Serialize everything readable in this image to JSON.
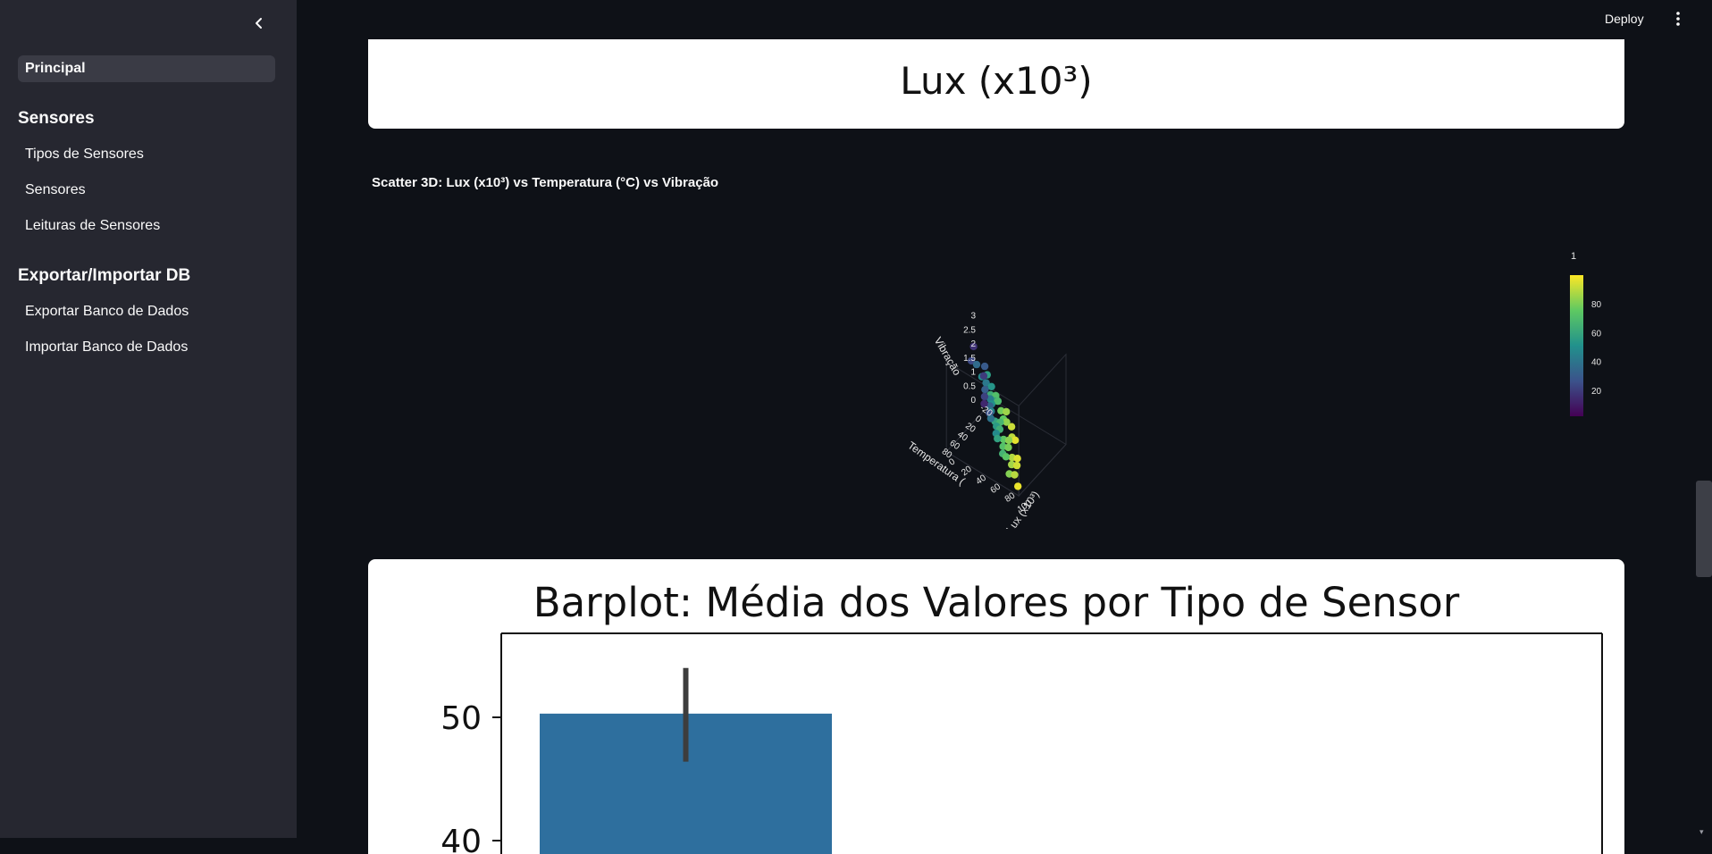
{
  "sidebar": {
    "active_item": "Principal",
    "sections": [
      {
        "heading": "Sensores",
        "items": [
          "Tipos de Sensores",
          "Sensores",
          "Leituras de Sensores"
        ]
      },
      {
        "heading": "Exportar/Importar DB",
        "items": [
          "Exportar Banco de Dados",
          "Importar Banco de Dados"
        ]
      }
    ]
  },
  "header": {
    "deploy_label": "Deploy"
  },
  "top_chart": {
    "xlabel": "Lux (x10³)"
  },
  "scatter": {
    "title": "Scatter 3D: Lux (x10³) vs Temperatura (°C) vs Vibração",
    "colorbar_title": "1",
    "colorbar_ticks": [
      "80",
      "60",
      "40",
      "20"
    ]
  },
  "chart_data": [
    {
      "type": "scatter",
      "title": "Scatter 3D: Lux (x10³) vs Temperatura (°C) vs Vibração",
      "xlabel": "Lux (x10³)",
      "ylabel": "Temperatura (",
      "zlabel": "Vibração",
      "x_ticks": [
        "0",
        "20",
        "40",
        "60",
        "80",
        "100"
      ],
      "y_ticks": [
        "-20",
        "0",
        "20",
        "40",
        "60",
        "80"
      ],
      "z_ticks": [
        "0",
        "0.5",
        "1",
        "1.5",
        "2",
        "2.5",
        "3"
      ],
      "colorbar": {
        "title": "1",
        "ticks": [
          20,
          40,
          60,
          80
        ],
        "colorscale": "viridis"
      },
      "points": [
        {
          "x": 5,
          "y": 40,
          "z": 2.9,
          "c": 15
        },
        {
          "x": 10,
          "y": 55,
          "z": 2.7,
          "c": 22
        },
        {
          "x": 20,
          "y": 60,
          "z": 2.8,
          "c": 35
        },
        {
          "x": 30,
          "y": 65,
          "z": 2.6,
          "c": 48
        },
        {
          "x": 40,
          "y": 70,
          "z": 2.9,
          "c": 55
        },
        {
          "x": 50,
          "y": 80,
          "z": 2.5,
          "c": 62
        },
        {
          "x": 60,
          "y": 85,
          "z": 2.7,
          "c": 70
        },
        {
          "x": 70,
          "y": 90,
          "z": 2.4,
          "c": 78
        },
        {
          "x": 80,
          "y": 95,
          "z": 2.6,
          "c": 85
        },
        {
          "x": 90,
          "y": 100,
          "z": 2.3,
          "c": 92
        },
        {
          "x": 15,
          "y": 30,
          "z": 2.2,
          "c": 28
        },
        {
          "x": 25,
          "y": 45,
          "z": 2.0,
          "c": 40
        },
        {
          "x": 35,
          "y": 50,
          "z": 2.1,
          "c": 52
        },
        {
          "x": 45,
          "y": 60,
          "z": 1.9,
          "c": 60
        },
        {
          "x": 55,
          "y": 70,
          "z": 2.2,
          "c": 68
        },
        {
          "x": 65,
          "y": 75,
          "z": 1.8,
          "c": 75
        },
        {
          "x": 75,
          "y": 85,
          "z": 2.0,
          "c": 83
        },
        {
          "x": 85,
          "y": 90,
          "z": 1.7,
          "c": 90
        },
        {
          "x": 95,
          "y": 100,
          "z": 1.9,
          "c": 96
        },
        {
          "x": 8,
          "y": 20,
          "z": 1.6,
          "c": 18
        },
        {
          "x": 18,
          "y": 35,
          "z": 1.5,
          "c": 30
        },
        {
          "x": 28,
          "y": 40,
          "z": 1.4,
          "c": 42
        },
        {
          "x": 38,
          "y": 55,
          "z": 1.6,
          "c": 50
        },
        {
          "x": 48,
          "y": 65,
          "z": 1.3,
          "c": 58
        },
        {
          "x": 58,
          "y": 70,
          "z": 1.5,
          "c": 66
        },
        {
          "x": 68,
          "y": 80,
          "z": 1.2,
          "c": 74
        },
        {
          "x": 78,
          "y": 85,
          "z": 1.4,
          "c": 82
        },
        {
          "x": 88,
          "y": 95,
          "z": 1.1,
          "c": 88
        },
        {
          "x": 98,
          "y": 100,
          "z": 1.3,
          "c": 95
        },
        {
          "x": 12,
          "y": 25,
          "z": 1.0,
          "c": 20
        },
        {
          "x": 22,
          "y": 30,
          "z": 0.9,
          "c": 33
        },
        {
          "x": 32,
          "y": 45,
          "z": 1.1,
          "c": 45
        },
        {
          "x": 42,
          "y": 50,
          "z": 0.8,
          "c": 54
        },
        {
          "x": 52,
          "y": 60,
          "z": 1.0,
          "c": 63
        },
        {
          "x": 62,
          "y": 70,
          "z": 0.7,
          "c": 71
        },
        {
          "x": 72,
          "y": 75,
          "z": 0.9,
          "c": 79
        },
        {
          "x": 82,
          "y": 85,
          "z": 0.6,
          "c": 86
        },
        {
          "x": 92,
          "y": 90,
          "z": 0.8,
          "c": 93
        },
        {
          "x": 6,
          "y": 15,
          "z": 0.5,
          "c": 12
        },
        {
          "x": 16,
          "y": 20,
          "z": 0.4,
          "c": 25
        },
        {
          "x": 26,
          "y": 35,
          "z": 0.6,
          "c": 38
        },
        {
          "x": 36,
          "y": 40,
          "z": 0.3,
          "c": 47
        },
        {
          "x": 46,
          "y": 55,
          "z": 0.5,
          "c": 57
        },
        {
          "x": 56,
          "y": 60,
          "z": 0.2,
          "c": 65
        },
        {
          "x": 66,
          "y": 70,
          "z": 0.4,
          "c": 73
        },
        {
          "x": 76,
          "y": 80,
          "z": 0.1,
          "c": 81
        },
        {
          "x": 86,
          "y": 85,
          "z": 0.3,
          "c": 89
        },
        {
          "x": 96,
          "y": 95,
          "z": 0.2,
          "c": 97
        }
      ]
    },
    {
      "type": "bar",
      "title": "Barplot: Média dos Valores por Tipo de Sensor",
      "y_ticks": [
        40,
        50
      ],
      "ylim": [
        38,
        56
      ],
      "bars": [
        {
          "value": 50.3,
          "error_low": 46.4,
          "error_high": 54.0,
          "color": "#2e6f9e"
        }
      ]
    }
  ]
}
